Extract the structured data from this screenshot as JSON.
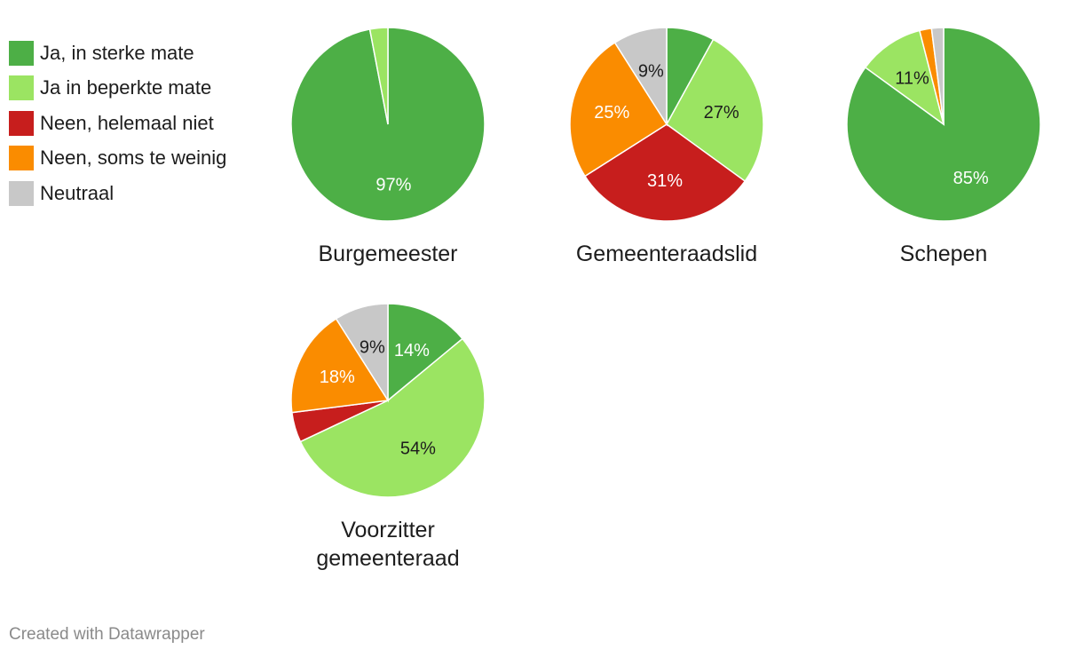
{
  "legend": [
    {
      "label": "Ja, in sterke mate",
      "color": "#4daf46"
    },
    {
      "label": "Ja in beperkte mate",
      "color": "#9be462"
    },
    {
      "label": "Neen, helemaal niet",
      "color": "#c71e1d"
    },
    {
      "label": "Neen, soms te weinig",
      "color": "#fa8c00"
    },
    {
      "label": "Neutraal",
      "color": "#c8c8c8"
    }
  ],
  "footer": "Created with Datawrapper",
  "chart_data": [
    {
      "type": "pie",
      "title": "Burgemeester",
      "categories": [
        "Ja, in sterke mate",
        "Ja in beperkte mate",
        "Neen, helemaal niet",
        "Neen, soms te weinig",
        "Neutraal"
      ],
      "values": [
        97,
        3,
        0,
        0,
        0
      ],
      "labels": [
        "97%",
        "",
        "",
        "",
        ""
      ]
    },
    {
      "type": "pie",
      "title": "Gemeenteraadslid",
      "categories": [
        "Ja, in sterke mate",
        "Ja in beperkte mate",
        "Neen, helemaal niet",
        "Neen, soms te weinig",
        "Neutraal"
      ],
      "values": [
        8,
        27,
        31,
        25,
        9
      ],
      "labels": [
        "",
        "27%",
        "31%",
        "25%",
        "9%"
      ]
    },
    {
      "type": "pie",
      "title": "Schepen",
      "categories": [
        "Ja, in sterke mate",
        "Ja in beperkte mate",
        "Neen, helemaal niet",
        "Neen, soms te weinig",
        "Neutraal"
      ],
      "values": [
        85,
        11,
        0,
        2,
        2
      ],
      "labels": [
        "85%",
        "11%",
        "",
        "",
        ""
      ]
    },
    {
      "type": "pie",
      "title": "Voorzitter gemeenteraad",
      "categories": [
        "Ja, in sterke mate",
        "Ja in beperkte mate",
        "Neen, helemaal niet",
        "Neen, soms te weinig",
        "Neutraal"
      ],
      "values": [
        14,
        54,
        5,
        18,
        9
      ],
      "labels": [
        "14%",
        "54%",
        "",
        "18%",
        "9%"
      ]
    }
  ]
}
